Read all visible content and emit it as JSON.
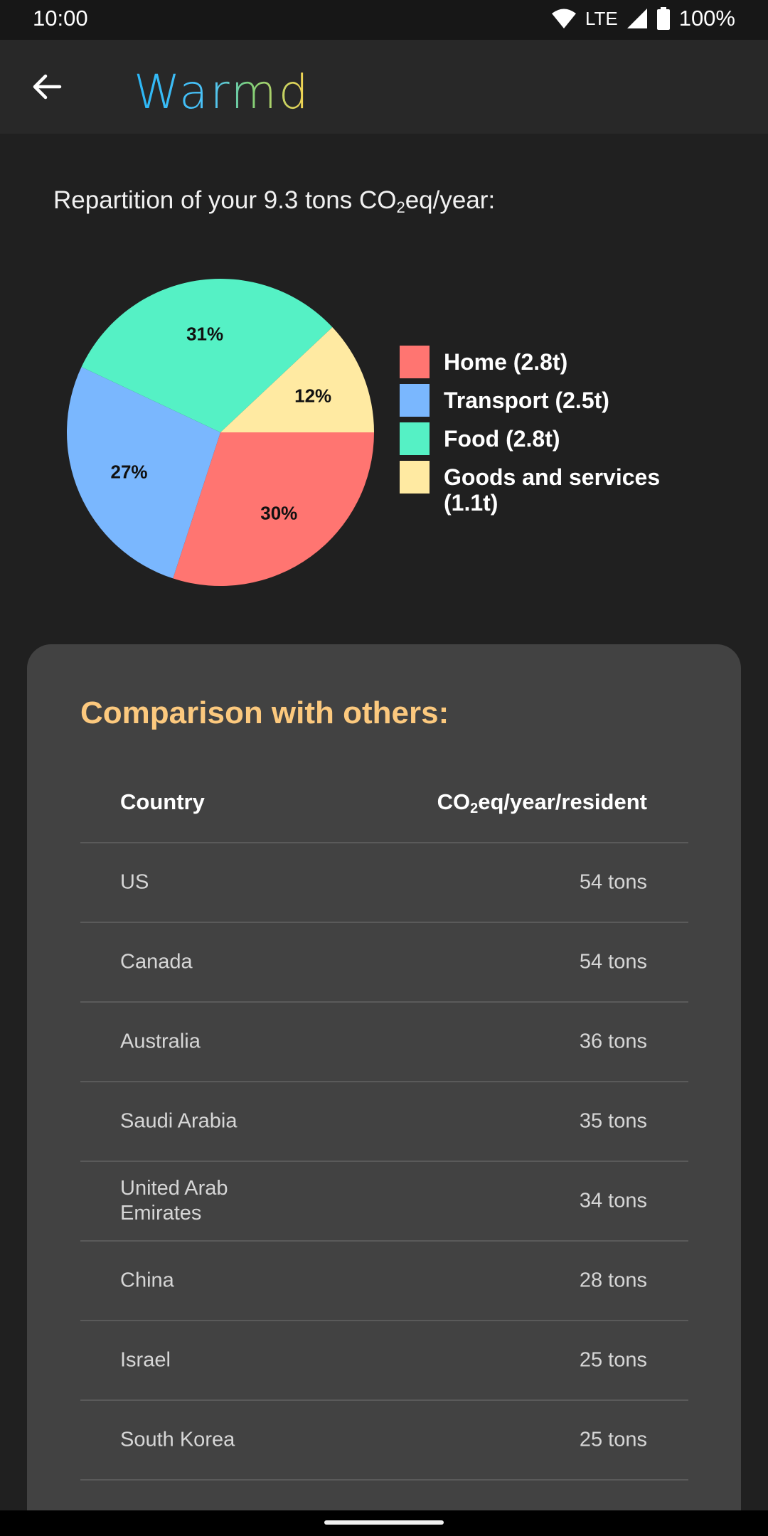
{
  "status_bar": {
    "time": "10:00",
    "network": "LTE",
    "battery": "100%"
  },
  "app_bar": {
    "logo_text": "Warmd",
    "logo_colors": [
      "#29b6f6",
      "#4fc3f7",
      "#66bb6a",
      "#9ccc65",
      "#ffd54f"
    ]
  },
  "summary": {
    "prefix": "Repartition of your 9.3 tons CO",
    "sub": "2",
    "suffix": "eq/year:"
  },
  "chart_data": {
    "type": "pie",
    "categories": [
      "Home (2.8t)",
      "Transport (2.5t)",
      "Food (2.8t)",
      "Goods and services (1.1t)"
    ],
    "values": [
      30,
      27,
      31,
      12
    ],
    "labels": [
      "30%",
      "27%",
      "31%",
      "12%"
    ],
    "colors": [
      "#ff7571",
      "#7ab7fe",
      "#55f1c5",
      "#ffeaa2"
    ],
    "legend_position": "right"
  },
  "comparison": {
    "title": "Comparison with others:",
    "header_country": "Country",
    "header_co2_prefix": "CO",
    "header_co2_sub": "2",
    "header_co2_suffix": "eq/year/resident",
    "rows": [
      {
        "country": "US",
        "value": "54 tons"
      },
      {
        "country": "Canada",
        "value": "54 tons"
      },
      {
        "country": "Australia",
        "value": "36 tons"
      },
      {
        "country": "Saudi Arabia",
        "value": "35 tons"
      },
      {
        "country": "United Arab Emirates",
        "value": "34 tons"
      },
      {
        "country": "China",
        "value": "28 tons"
      },
      {
        "country": "Israel",
        "value": "25 tons"
      },
      {
        "country": "South Korea",
        "value": "25 tons"
      }
    ]
  }
}
